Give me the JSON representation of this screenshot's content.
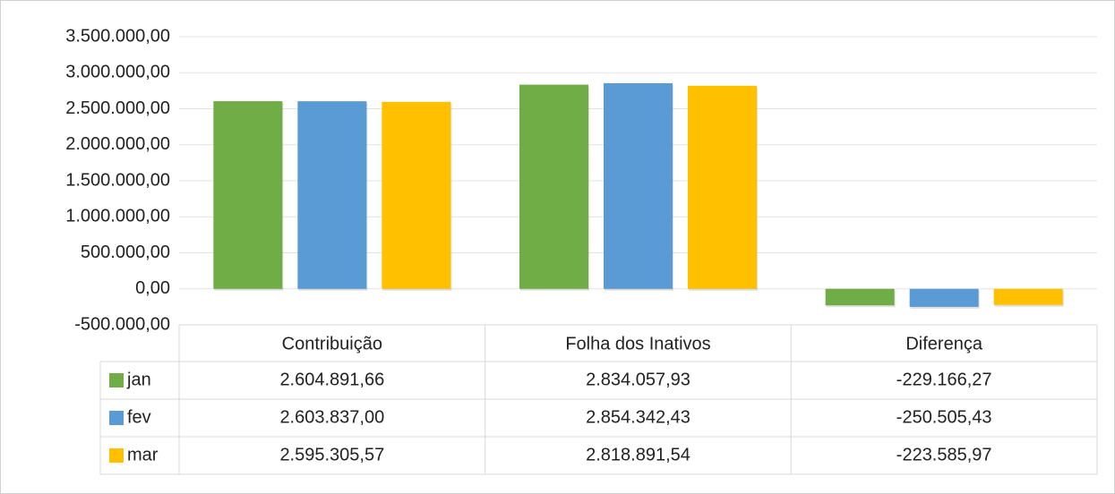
{
  "chart_data": {
    "type": "bar",
    "categories": [
      "Contribuição",
      "Folha dos Inativos",
      "Diferença"
    ],
    "series": [
      {
        "name": "jan",
        "color": "#70ad47",
        "values": [
          2604891.66,
          2834057.93,
          -229166.27
        ],
        "value_labels": [
          "2.604.891,66",
          "2.834.057,93",
          "-229.166,27"
        ]
      },
      {
        "name": "fev",
        "color": "#5b9bd5",
        "values": [
          2603837.0,
          2854342.43,
          -250505.43
        ],
        "value_labels": [
          "2.603.837,00",
          "2.854.342,43",
          "-250.505,43"
        ]
      },
      {
        "name": "mar",
        "color": "#ffc000",
        "values": [
          2595305.57,
          2818891.54,
          -223585.97
        ],
        "value_labels": [
          "2.595.305,57",
          "2.818.891,54",
          "-223.585,97"
        ]
      }
    ],
    "ylim": [
      -500000,
      3500000
    ],
    "yticks": [
      {
        "value": -500000,
        "label": "-500.000,00"
      },
      {
        "value": 0,
        "label": "0,00"
      },
      {
        "value": 500000,
        "label": "500.000,00"
      },
      {
        "value": 1000000,
        "label": "1.000.000,00"
      },
      {
        "value": 1500000,
        "label": "1.500.000,00"
      },
      {
        "value": 2000000,
        "label": "2.000.000,00"
      },
      {
        "value": 2500000,
        "label": "2.500.000,00"
      },
      {
        "value": 3000000,
        "label": "3.000.000,00"
      },
      {
        "value": 3500000,
        "label": "3.500.000,00"
      }
    ],
    "grid": true
  }
}
